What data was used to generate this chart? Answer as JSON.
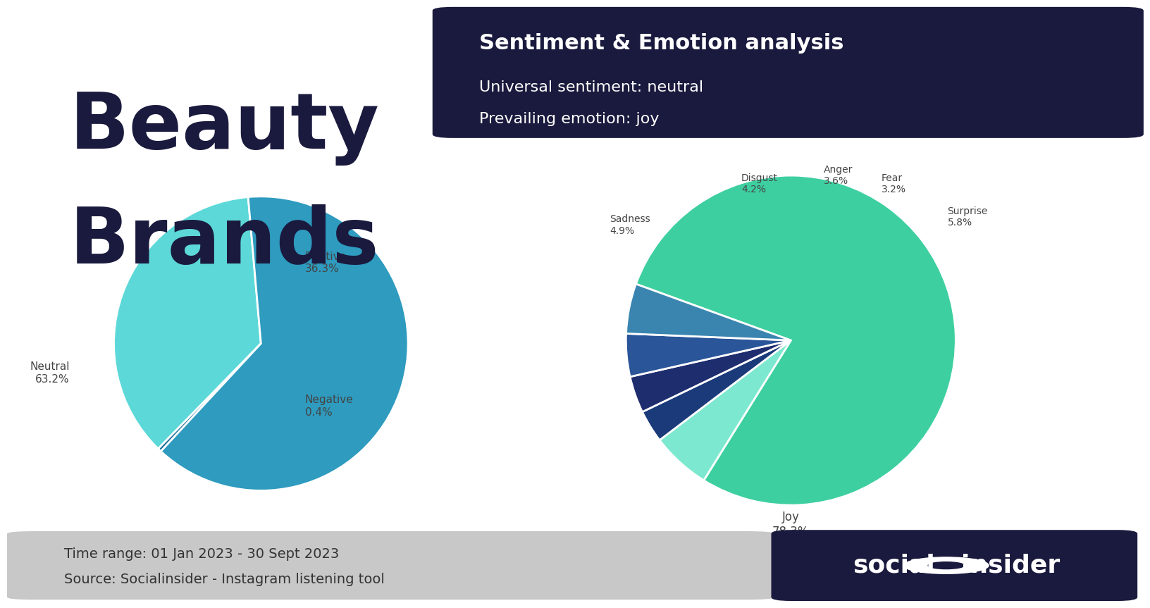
{
  "title_main_line1": "Beauty",
  "title_main_line2": "Brands",
  "title_main_color": "#1a1a3e",
  "header_box_color": "#1a1a3e",
  "header_title": "Sentiment & Emotion analysis",
  "header_subtitle1": "Universal sentiment: neutral",
  "header_subtitle2": "Prevailing emotion: joy",
  "sentiment_labels": [
    "Positive",
    "Negative",
    "Neutral"
  ],
  "sentiment_values": [
    36.3,
    0.4,
    63.3
  ],
  "sentiment_colors": [
    "#5dd8d8",
    "#1a6e9a",
    "#2e9bbf"
  ],
  "emotion_labels": [
    "Joy",
    "Surprise",
    "Fear",
    "Anger",
    "Disgust",
    "Sadness"
  ],
  "emotion_values": [
    78.3,
    5.8,
    3.2,
    3.6,
    4.2,
    4.9
  ],
  "emotion_colors": [
    "#3ecfa0",
    "#7de8d0",
    "#1a3a7a",
    "#1e2d6e",
    "#2a5599",
    "#3a85b0"
  ],
  "footer_text1": "Time range: 01 Jan 2023 - 30 Sept 2023",
  "footer_text2": "Source: Socialinsider - Instagram listening tool",
  "footer_bg": "#c8c8c8",
  "bg_color": "#ffffff",
  "text_color": "#444444"
}
